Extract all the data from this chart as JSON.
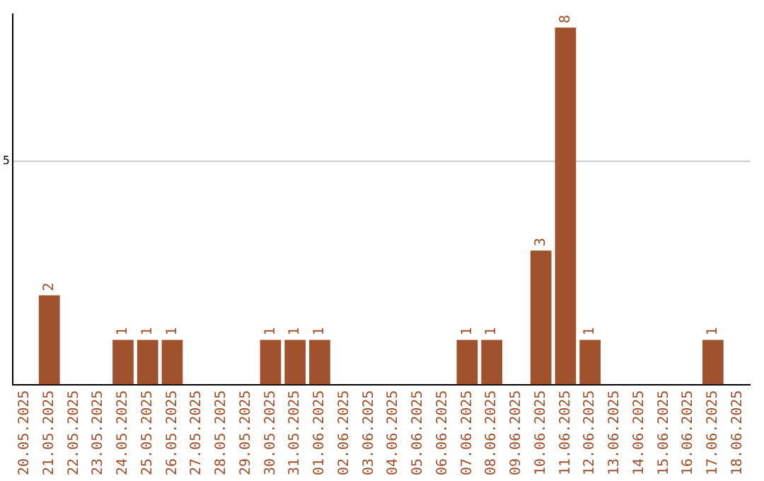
{
  "chart_data": {
    "type": "bar",
    "categories": [
      "20.05.2025",
      "21.05.2025",
      "22.05.2025",
      "23.05.2025",
      "24.05.2025",
      "25.05.2025",
      "26.05.2025",
      "27.05.2025",
      "28.05.2025",
      "29.05.2025",
      "30.05.2025",
      "31.05.2025",
      "01.06.2025",
      "02.06.2025",
      "03.06.2025",
      "04.06.2025",
      "05.06.2025",
      "06.06.2025",
      "07.06.2025",
      "08.06.2025",
      "09.06.2025",
      "10.06.2025",
      "11.06.2025",
      "12.06.2025",
      "13.06.2025",
      "14.06.2025",
      "15.06.2025",
      "16.06.2025",
      "17.06.2025",
      "18.06.2025"
    ],
    "values": [
      0,
      2,
      0,
      0,
      1,
      1,
      1,
      0,
      0,
      0,
      1,
      1,
      1,
      0,
      0,
      0,
      0,
      0,
      1,
      1,
      0,
      3,
      8,
      1,
      0,
      0,
      0,
      0,
      1,
      0
    ],
    "value_labels": [
      null,
      "2",
      null,
      null,
      "1",
      "1",
      "1",
      null,
      null,
      null,
      "1",
      "1",
      "1",
      null,
      null,
      null,
      null,
      null,
      "1",
      "1",
      null,
      "3",
      "8",
      "1",
      null,
      null,
      null,
      null,
      "1",
      null
    ],
    "color": "#a0522d",
    "ylim": [
      0,
      8.3
    ],
    "yticks": [
      5
    ],
    "grid": "y",
    "legend": false
  }
}
